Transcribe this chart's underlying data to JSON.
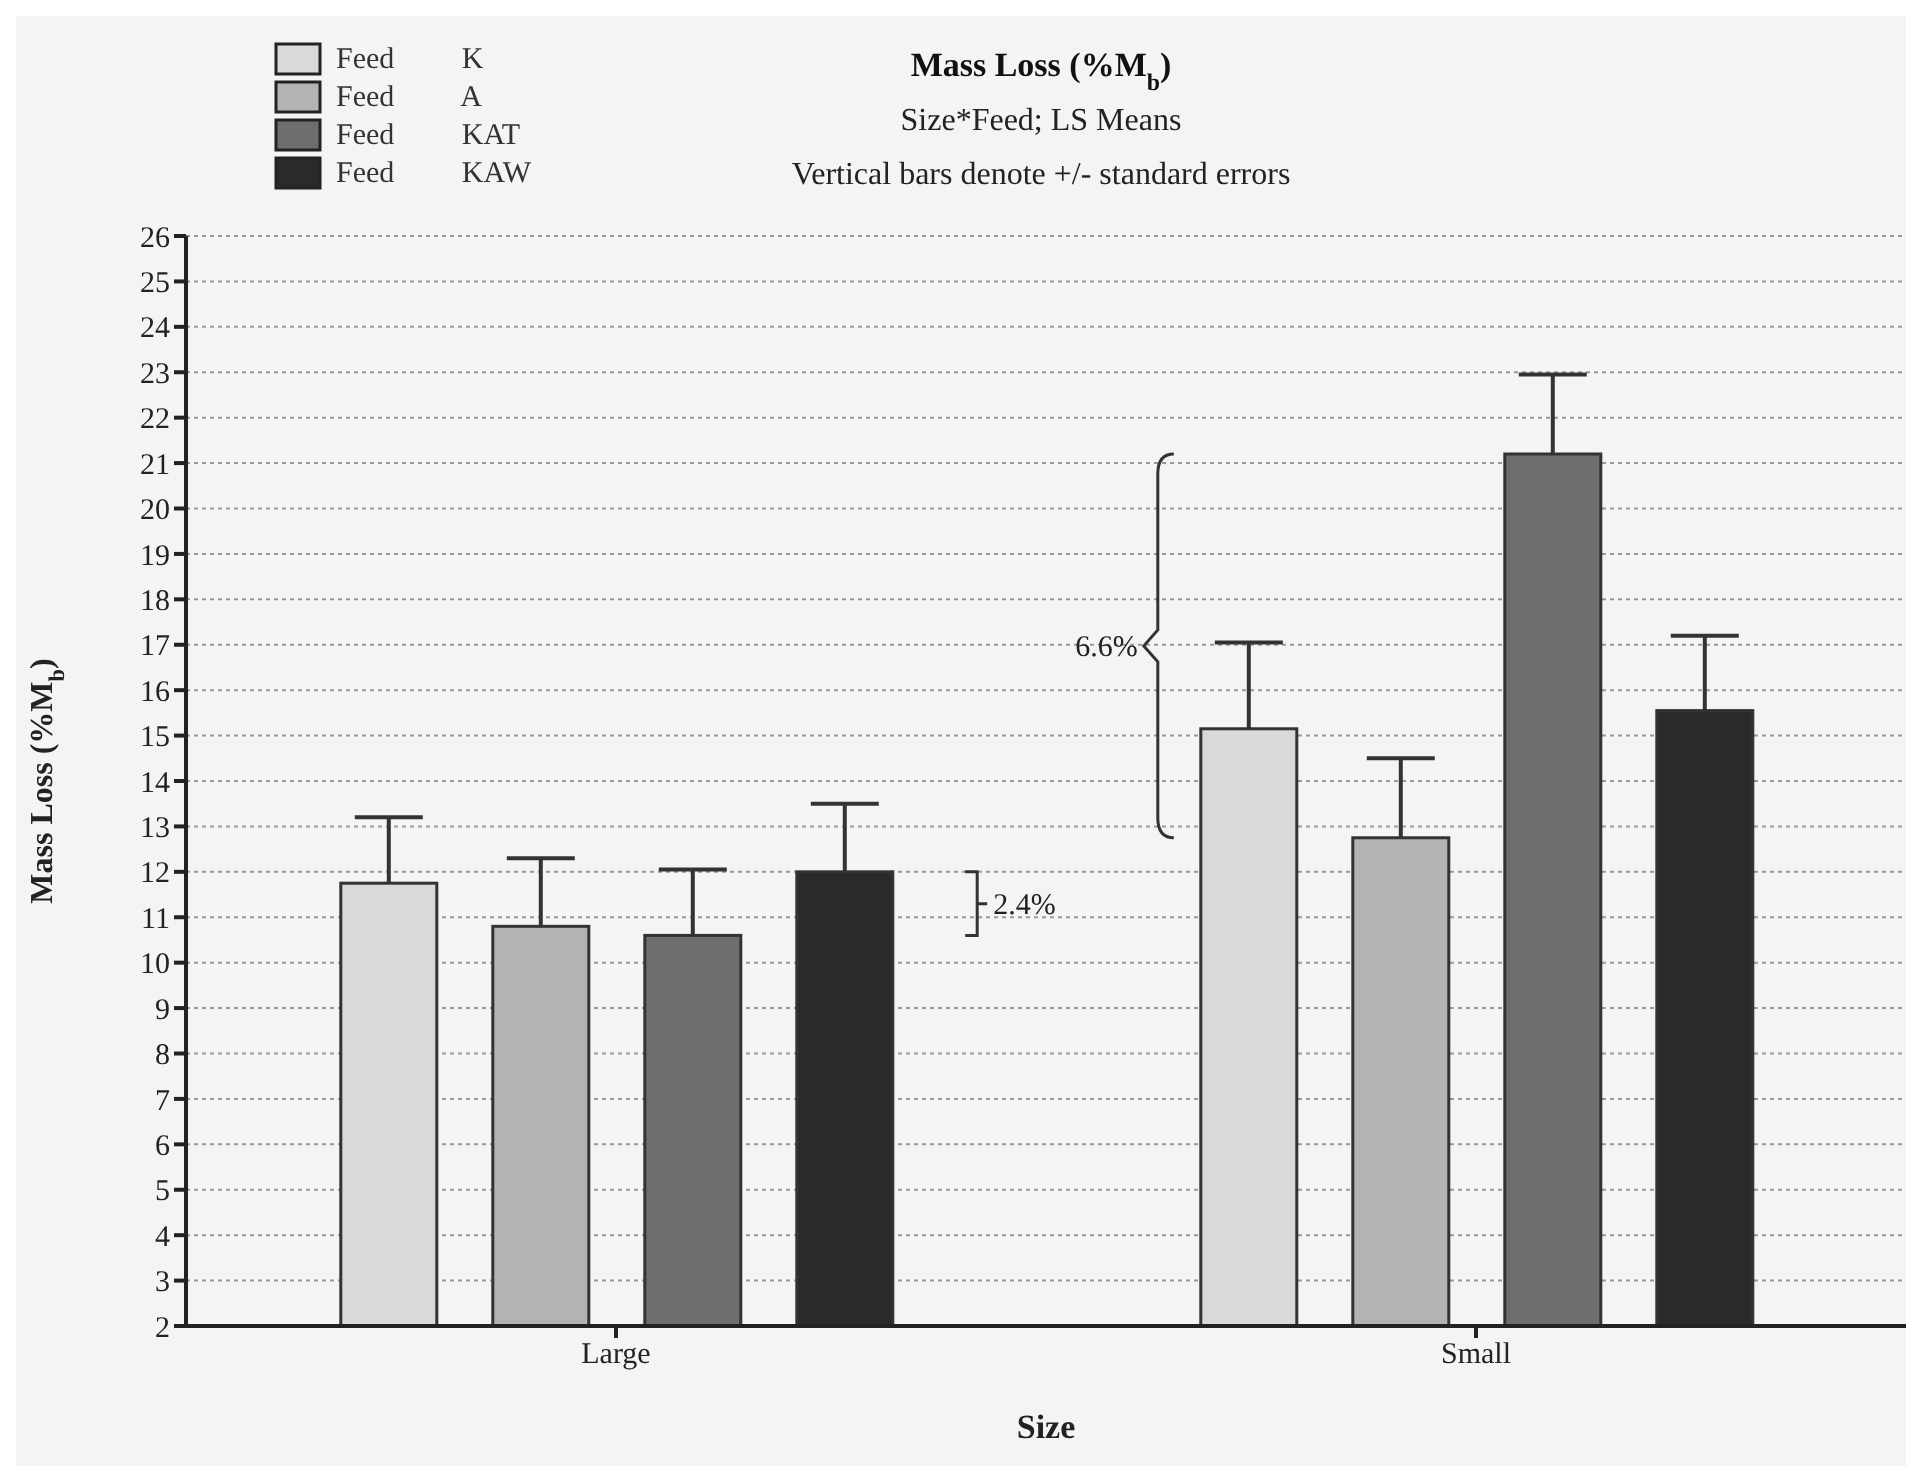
{
  "chart_data": {
    "type": "bar",
    "title": "Mass Loss (%M$_{b}$)",
    "subtitle": "Size*Feed; LS Means",
    "xlabel": "Size",
    "ylabel": "Mass Loss (%M$_{b}$)",
    "annotations": [
      "Vertical bars denote +/- standard errors",
      "2.4%",
      "6.6%"
    ],
    "categories": [
      "Large",
      "Small"
    ],
    "series": [
      {
        "name": "Feed K",
        "color": "#d9d9d9",
        "values": [
          11.75,
          15.15
        ],
        "errors": [
          1.45,
          1.9
        ]
      },
      {
        "name": "Feed A",
        "color": "#b3b3b3",
        "values": [
          10.8,
          12.75
        ],
        "errors": [
          1.5,
          1.75
        ]
      },
      {
        "name": "Feed KAT",
        "color": "#6e6e6e",
        "values": [
          10.6,
          21.2
        ],
        "errors": [
          1.45,
          1.75
        ]
      },
      {
        "name": "Feed KAW",
        "color": "#2a2a2a",
        "values": [
          12.0,
          15.55
        ],
        "errors": [
          1.5,
          1.65
        ]
      }
    ],
    "ylim": [
      2,
      26
    ],
    "yticks": [
      2,
      3,
      4,
      5,
      6,
      7,
      8,
      9,
      10,
      11,
      12,
      13,
      14,
      15,
      16,
      17,
      18,
      19,
      20,
      21,
      22,
      23,
      24,
      25,
      26
    ],
    "grid": "y",
    "legend": "top left"
  }
}
